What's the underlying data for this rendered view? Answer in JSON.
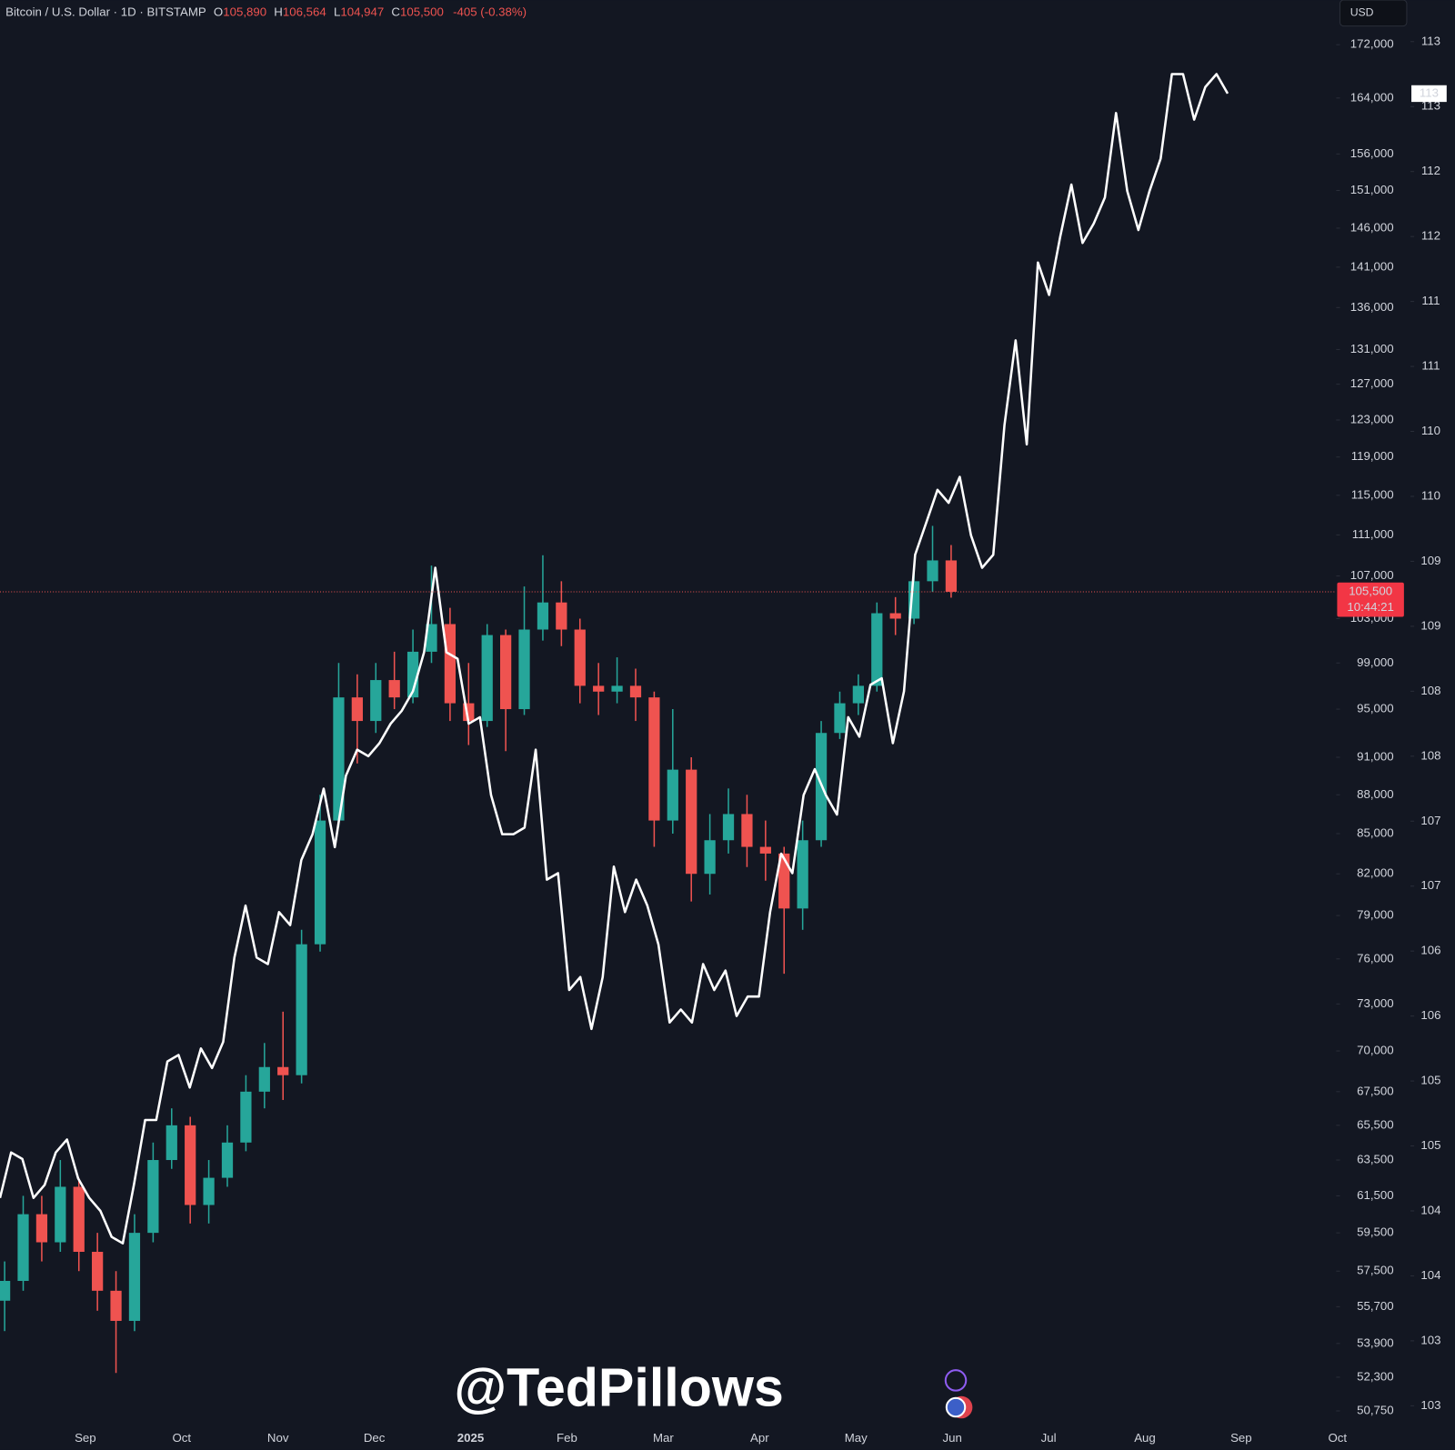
{
  "chart_data": {
    "type": "candlestick",
    "header": {
      "symbol": "Bitcoin / U.S. Dollar · 1D · BITSTAMP",
      "open_label": "O",
      "open": "105,890",
      "high_label": "H",
      "high": "106,564",
      "low_label": "L",
      "low": "104,947",
      "close_label": "C",
      "close": "105,500",
      "change": "-405 (-0.38%)"
    },
    "currency": "USD",
    "watermark": "@TedPillows",
    "log_scale": true,
    "up_color": "#26a69a",
    "down_color": "#ef5350",
    "xtick_labels": [
      "Sep",
      "Oct",
      "Nov",
      "Dec",
      "2025",
      "Feb",
      "Mar",
      "Apr",
      "May",
      "Jun",
      "Jul",
      "Aug",
      "Sep",
      "Oct"
    ],
    "candles": {
      "open": [
        56000,
        57000,
        60500,
        59000,
        62000,
        58500,
        56500,
        55000,
        59500,
        63500,
        65500,
        61000,
        62500,
        64500,
        67500,
        69000,
        68500,
        77000,
        86000,
        96000,
        94000,
        97500,
        96000,
        100000,
        102500,
        95500,
        94000,
        101500,
        95000,
        102000,
        104500,
        102000,
        97000,
        96500,
        97000,
        96000,
        86000,
        90000,
        82000,
        84500,
        86500,
        84000,
        83500,
        79500,
        84500,
        93000,
        95500,
        97000,
        103500,
        103000,
        106500,
        108500
      ],
      "high": [
        58000,
        61500,
        61500,
        63500,
        62500,
        59500,
        57500,
        60500,
        64500,
        66500,
        66000,
        63500,
        65500,
        68500,
        70500,
        72500,
        78000,
        88000,
        99000,
        98000,
        99000,
        100000,
        102000,
        108000,
        104000,
        99000,
        102500,
        102000,
        106000,
        109000,
        106500,
        103000,
        99000,
        99500,
        98500,
        96500,
        95000,
        91000,
        86500,
        88500,
        88000,
        86000,
        84000,
        86000,
        94000,
        96500,
        98000,
        104500,
        105000,
        107500,
        111900,
        110000
      ],
      "low": [
        54500,
        56500,
        58000,
        58500,
        57500,
        55500,
        52500,
        54500,
        59000,
        63000,
        60000,
        60000,
        62000,
        64000,
        66500,
        67000,
        68000,
        76500,
        85500,
        90500,
        93000,
        95000,
        95500,
        99000,
        94000,
        92000,
        93500,
        91500,
        94500,
        101000,
        100500,
        95500,
        94500,
        95500,
        94000,
        84000,
        85000,
        80000,
        80500,
        83500,
        82500,
        81500,
        75000,
        78000,
        84000,
        92500,
        94500,
        96500,
        101500,
        102500,
        105500,
        104947
      ],
      "close": [
        57000,
        60500,
        59000,
        62000,
        58500,
        56500,
        55000,
        59500,
        63500,
        65500,
        61000,
        62500,
        64500,
        67500,
        69000,
        68500,
        77000,
        86000,
        96000,
        94000,
        97500,
        96000,
        100000,
        102500,
        95500,
        94000,
        101500,
        95000,
        102000,
        104500,
        102000,
        97000,
        96500,
        97000,
        96000,
        86000,
        90000,
        82000,
        84500,
        86500,
        84000,
        83500,
        79500,
        84500,
        93000,
        95500,
        97000,
        103500,
        103000,
        106500,
        108500,
        105500
      ]
    },
    "last_price": 105500,
    "last_price_label": "105,500",
    "countdown": "10:44:21",
    "line": {
      "axis": "y2",
      "color": "#ffffff",
      "last_label": "113",
      "values": [
        104.35,
        104.7,
        104.65,
        104.35,
        104.45,
        104.7,
        104.8,
        104.5,
        104.35,
        104.25,
        104.05,
        104.0,
        104.45,
        104.95,
        104.95,
        105.4,
        105.45,
        105.2,
        105.5,
        105.35,
        105.55,
        106.2,
        106.6,
        106.2,
        106.15,
        106.55,
        106.45,
        106.95,
        107.15,
        107.5,
        107.05,
        107.6,
        107.8,
        107.75,
        107.85,
        108.0,
        108.1,
        108.25,
        108.55,
        109.2,
        108.55,
        108.5,
        108.0,
        108.05,
        107.45,
        107.15,
        107.15,
        107.2,
        107.8,
        106.8,
        106.85,
        105.95,
        106.05,
        105.65,
        106.05,
        106.9,
        106.55,
        106.8,
        106.6,
        106.3,
        105.7,
        105.8,
        105.7,
        106.15,
        105.95,
        106.1,
        105.75,
        105.9,
        105.9,
        106.55,
        107.0,
        106.85,
        107.45,
        107.65,
        107.45,
        107.3,
        108.05,
        107.9,
        108.3,
        108.35,
        107.85,
        108.25,
        109.3,
        109.55,
        109.8,
        109.7,
        109.9,
        109.45,
        109.2,
        109.3,
        110.3,
        110.95,
        110.15,
        111.55,
        111.3,
        111.75,
        112.15,
        111.7,
        111.85,
        112.05,
        112.7,
        112.1,
        111.8,
        112.1,
        112.35,
        113.0,
        113.0,
        112.65,
        112.9,
        113.0,
        112.85
      ]
    },
    "ylim": [
      50160,
      179000
    ],
    "yticks": [
      {
        "value": 50750,
        "label": "50,750"
      },
      {
        "value": 52300,
        "label": "52,300"
      },
      {
        "value": 53900,
        "label": "53,900"
      },
      {
        "value": 55700,
        "label": "55,700"
      },
      {
        "value": 57500,
        "label": "57,500"
      },
      {
        "value": 59500,
        "label": "59,500"
      },
      {
        "value": 61500,
        "label": "61,500"
      },
      {
        "value": 63500,
        "label": "63,500"
      },
      {
        "value": 65500,
        "label": "65,500"
      },
      {
        "value": 67500,
        "label": "67,500"
      },
      {
        "value": 70000,
        "label": "70,000"
      },
      {
        "value": 73000,
        "label": "73,000"
      },
      {
        "value": 76000,
        "label": "76,000"
      },
      {
        "value": 79000,
        "label": "79,000"
      },
      {
        "value": 82000,
        "label": "82,000"
      },
      {
        "value": 85000,
        "label": "85,000"
      },
      {
        "value": 88000,
        "label": "88,000"
      },
      {
        "value": 91000,
        "label": "91,000"
      },
      {
        "value": 95000,
        "label": "95,000"
      },
      {
        "value": 99000,
        "label": "99,000"
      },
      {
        "value": 103000,
        "label": "103,000"
      },
      {
        "value": 107000,
        "label": "107,000"
      },
      {
        "value": 111000,
        "label": "111,000"
      },
      {
        "value": 115000,
        "label": "115,000"
      },
      {
        "value": 119000,
        "label": "119,000"
      },
      {
        "value": 123000,
        "label": "123,000"
      },
      {
        "value": 127000,
        "label": "127,000"
      },
      {
        "value": 131000,
        "label": "131,000"
      },
      {
        "value": 136000,
        "label": "136,000"
      },
      {
        "value": 141000,
        "label": "141,000"
      },
      {
        "value": 146000,
        "label": "146,000"
      },
      {
        "value": 151000,
        "label": "151,000"
      },
      {
        "value": 156000,
        "label": "156,000"
      },
      {
        "value": 164000,
        "label": "164,000"
      },
      {
        "value": 172000,
        "label": "172,000"
      }
    ],
    "y2lim": [
      102.61,
      113.57
    ],
    "y2ticks": [
      {
        "value": 102.75,
        "label": "103"
      },
      {
        "value": 103.25,
        "label": "103"
      },
      {
        "value": 103.75,
        "label": "104"
      },
      {
        "value": 104.25,
        "label": "104"
      },
      {
        "value": 104.75,
        "label": "105"
      },
      {
        "value": 105.25,
        "label": "105"
      },
      {
        "value": 105.75,
        "label": "106"
      },
      {
        "value": 106.25,
        "label": "106"
      },
      {
        "value": 106.75,
        "label": "107"
      },
      {
        "value": 107.25,
        "label": "107"
      },
      {
        "value": 107.75,
        "label": "108"
      },
      {
        "value": 108.25,
        "label": "108"
      },
      {
        "value": 108.75,
        "label": "109"
      },
      {
        "value": 109.25,
        "label": "109"
      },
      {
        "value": 109.75,
        "label": "110"
      },
      {
        "value": 110.25,
        "label": "110"
      },
      {
        "value": 110.75,
        "label": "111"
      },
      {
        "value": 111.25,
        "label": "111"
      },
      {
        "value": 111.75,
        "label": "112"
      },
      {
        "value": 112.25,
        "label": "112"
      },
      {
        "value": 112.75,
        "label": "113"
      },
      {
        "value": 113.25,
        "label": "113"
      }
    ]
  }
}
